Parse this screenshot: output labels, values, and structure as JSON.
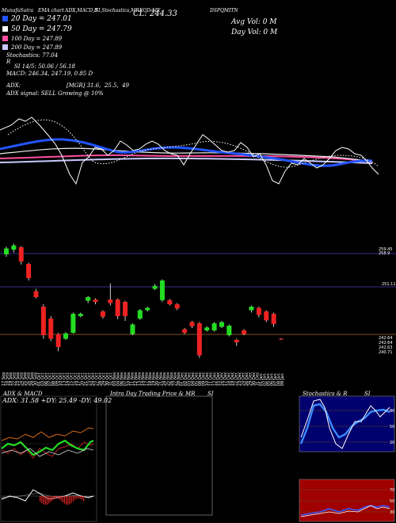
{
  "header": {
    "line1_left": "MunafaSutra",
    "line1_a": "EMA chart",
    "line1_b": "ADX,MACD,B",
    "line1_c": "SI,Stochastics,MR",
    "line1_d": "EOD ME",
    "close_label": "CL: 244.33",
    "symbol": "DSPQMITN",
    "avg_vol": "Avg Vol: 0  M",
    "day_vol": "Day Vol: 0   M"
  },
  "legend": {
    "d20": "20  Day = 247.01",
    "d50": "50  Day = 247.79",
    "d100": "100  Day = 247.89",
    "d200": "200  Day = 247.89",
    "stoch": "Stochastics: 77.04",
    "rsi": "SI 14/5: 50.06 / 56.18",
    "rsi_prefix": "R",
    "macd": "MACD: 246.34, 247.19,  0.85 D",
    "adx": "ADX:                          [MGR] 31.6,  25.5,  49",
    "adx_signal": "ADX  signal: SELL  Growing @ 10%"
  },
  "colors": {
    "d20": "#2255ff",
    "d50": "#ffffff",
    "d100": "#ff4fa0",
    "d200": "#c8c8ff",
    "up": "#22dd22",
    "down": "#ee2222",
    "grid": "#3a2a8a",
    "red_line": "#cc2222"
  },
  "price_axis": {
    "top_label": "259.45",
    "top_label2": "258.9",
    "mid_label": "251.11",
    "low_label1": "242.64",
    "low_label2": "242.64",
    "low_label3": "242.63",
    "low_label4": "240.71"
  },
  "dates": [
    "17 Sep",
    "18 Sep",
    "19 Sep",
    "22 Sep",
    "23 Sep",
    "24 Sep",
    "25 Sep",
    "26 Sep",
    "29 Sep",
    "30 Sep",
    "01 Oct",
    "03 Oct",
    "06 Oct",
    "07 Oct",
    "08 Oct",
    "09 Oct",
    "10 Oct",
    "13 Oct",
    "14 Oct",
    "15 Oct",
    "16 Oct",
    "17 Oct",
    "20 Oct",
    "21 Oct",
    "23 Oct",
    "24 Oct",
    "27 Oct",
    "28 Oct",
    "29 Oct",
    "30 Oct",
    "31 Oct",
    "03 Nov",
    "04 Nov",
    "06 Nov",
    "07 Nov",
    "10 Nov",
    "11 Nov",
    "12 Nov",
    "13 Nov",
    "14 Nov",
    "17 Nov",
    "18 Nov",
    "19 Nov",
    "20 Nov",
    "21 Nov",
    "24 Nov",
    "25 Nov",
    "26 Nov",
    "27 Nov",
    "28 Nov",
    "01 Dec",
    "02 Dec",
    "03 Dec",
    "04 Dec",
    "05 Dec",
    "08 Dec",
    "09 Dec",
    "10 Dec",
    "11 Dec",
    "12 Dec",
    "15 Dec",
    "16 Dec",
    "17 Dec",
    "18 Dec",
    "19 Dec",
    "22 Dec",
    "23 Dec",
    "24 Dec",
    "26 Dec",
    "29 Dec",
    "30 Dec",
    "31 Dec",
    "01 Jan",
    "02 Jan",
    "05 Jan",
    "06 Jan",
    "07 Jan",
    "08 Jan",
    "09 Jan"
  ],
  "panels": {
    "adx_title": "ADX  & MACD",
    "adx_readout": "ADX: 31.58  +DY: 25.49  -DY: 49.02",
    "intraday_title": "Intra  Day Trading Price  & MR",
    "intraday_si": "SI",
    "stoch_title": "Stochastics & R",
    "stoch_si": "SI",
    "stoch_levels": [
      "80",
      "50",
      "20"
    ],
    "rsi_levels": [
      "70",
      "50",
      "30"
    ]
  },
  "chart_data": {
    "type": "candlestick",
    "title": "",
    "categories_ref": "dates",
    "ylim": [
      240,
      260
    ],
    "candles": [
      {
        "o": 257.2,
        "c": 258.2,
        "h": 258.5,
        "l": 256.8,
        "dir": "up"
      },
      {
        "o": 258.0,
        "c": 258.7,
        "h": 259.0,
        "l": 257.5,
        "dir": "up"
      },
      {
        "o": 258.4,
        "c": 256.0,
        "h": 258.6,
        "l": 255.5,
        "dir": "down"
      },
      {
        "o": 255.6,
        "c": 253.2,
        "h": 255.8,
        "l": 252.8,
        "dir": "down"
      },
      {
        "o": 251.0,
        "c": 250.0,
        "h": 251.4,
        "l": 249.8,
        "dir": "down"
      },
      {
        "o": 248.4,
        "c": 243.6,
        "h": 248.8,
        "l": 243.0,
        "dir": "down"
      },
      {
        "o": 246.4,
        "c": 243.0,
        "h": 246.8,
        "l": 242.6,
        "dir": "down"
      },
      {
        "o": 243.8,
        "c": 241.6,
        "h": 244.0,
        "l": 240.9,
        "dir": "down"
      },
      {
        "o": 243.0,
        "c": 243.9,
        "h": 244.1,
        "l": 242.8,
        "dir": "up"
      },
      {
        "o": 244.0,
        "c": 247.2,
        "h": 247.4,
        "l": 243.9,
        "dir": "up"
      },
      {
        "o": 246.8,
        "c": 247.2,
        "h": 247.4,
        "l": 246.6,
        "dir": "up"
      },
      {
        "o": 249.4,
        "c": 250.0,
        "h": 250.2,
        "l": 249.0,
        "dir": "up"
      },
      {
        "o": 249.6,
        "c": 249.2,
        "h": 249.8,
        "l": 248.8,
        "dir": "down"
      },
      {
        "o": 247.6,
        "c": 246.7,
        "h": 247.8,
        "l": 246.4,
        "dir": "down"
      },
      {
        "o": 249.6,
        "c": 249.0,
        "h": 252.3,
        "l": 248.6,
        "dir": "down"
      },
      {
        "o": 249.6,
        "c": 246.8,
        "h": 249.8,
        "l": 246.3,
        "dir": "down"
      },
      {
        "o": 249.2,
        "c": 246.8,
        "h": 249.4,
        "l": 246.0,
        "dir": "down"
      },
      {
        "o": 243.8,
        "c": 245.4,
        "h": 245.6,
        "l": 243.6,
        "dir": "up"
      },
      {
        "o": 246.4,
        "c": 247.8,
        "h": 248.0,
        "l": 246.2,
        "dir": "up"
      },
      {
        "o": 247.8,
        "c": 248.2,
        "h": 248.4,
        "l": 247.6,
        "dir": "up"
      },
      {
        "o": 251.4,
        "c": 251.9,
        "h": 252.2,
        "l": 251.2,
        "dir": "up"
      },
      {
        "o": 249.5,
        "c": 252.8,
        "h": 253.0,
        "l": 249.2,
        "dir": "up"
      },
      {
        "o": 249.5,
        "c": 248.8,
        "h": 249.7,
        "l": 248.6,
        "dir": "down"
      },
      {
        "o": 248.8,
        "c": 248.1,
        "h": 249.0,
        "l": 247.8,
        "dir": "down"
      },
      {
        "o": 244.6,
        "c": 244.0,
        "h": 244.8,
        "l": 243.8,
        "dir": "down"
      },
      {
        "o": 245.8,
        "c": 245.1,
        "h": 246.0,
        "l": 244.8,
        "dir": "down"
      },
      {
        "o": 245.6,
        "c": 240.2,
        "h": 245.8,
        "l": 239.8,
        "dir": "down"
      },
      {
        "o": 244.4,
        "c": 244.9,
        "h": 245.1,
        "l": 244.2,
        "dir": "up"
      },
      {
        "o": 244.4,
        "c": 245.6,
        "h": 245.8,
        "l": 244.2,
        "dir": "up"
      },
      {
        "o": 245.0,
        "c": 245.8,
        "h": 246.0,
        "l": 244.8,
        "dir": "up"
      },
      {
        "o": 243.6,
        "c": 245.2,
        "h": 245.4,
        "l": 243.4,
        "dir": "up"
      },
      {
        "o": 242.8,
        "c": 242.4,
        "h": 243.0,
        "l": 241.8,
        "dir": "down"
      },
      {
        "o": 244.4,
        "c": 243.8,
        "h": 244.6,
        "l": 243.6,
        "dir": "down"
      },
      {
        "o": 247.8,
        "c": 248.4,
        "h": 248.6,
        "l": 247.4,
        "dir": "up"
      },
      {
        "o": 248.2,
        "c": 247.0,
        "h": 248.4,
        "l": 246.6,
        "dir": "down"
      },
      {
        "o": 247.6,
        "c": 246.1,
        "h": 247.8,
        "l": 245.8,
        "dir": "down"
      },
      {
        "o": 247.2,
        "c": 245.5,
        "h": 247.4,
        "l": 245.0,
        "dir": "down"
      },
      {
        "o": 243.0,
        "c": 242.9,
        "h": 243.1,
        "l": 242.8,
        "dir": "down"
      }
    ]
  }
}
